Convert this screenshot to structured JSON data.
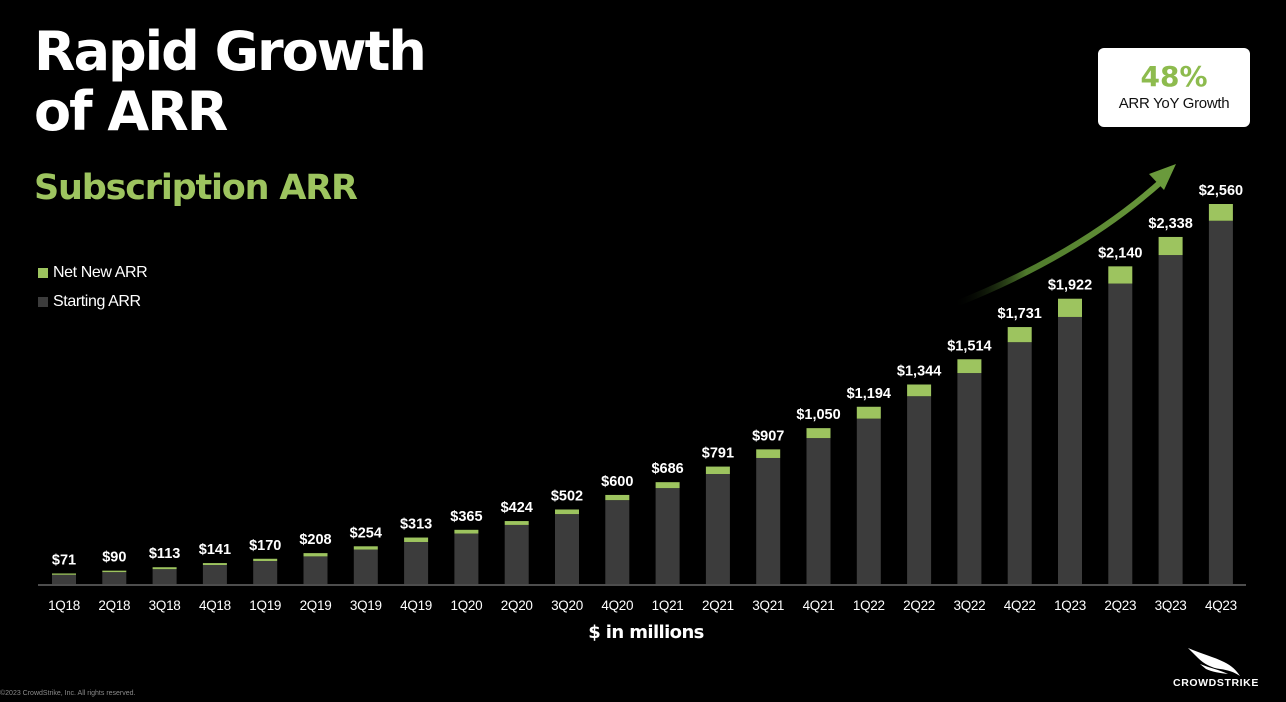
{
  "title_lines": [
    "Rapid Growth",
    "of ARR"
  ],
  "subtitle": "Subscription ARR",
  "legend": [
    {
      "label": "Net New ARR",
      "color": "#9dc45f"
    },
    {
      "label": "Starting ARR",
      "color": "#3c3c3c"
    }
  ],
  "callout": {
    "value": "48%",
    "label": "ARR YoY Growth"
  },
  "footer": "©2023 CrowdStrike, Inc. All rights reserved.",
  "logo_text": "CROWDSTRIKE",
  "colors": {
    "background": "#000000",
    "net_new": "#9dc45f",
    "starting": "#3c3c3c",
    "arrow": "#6a9a3c"
  },
  "chart_data": {
    "type": "bar",
    "stacked": true,
    "categories": [
      "1Q18",
      "2Q18",
      "3Q18",
      "4Q18",
      "1Q19",
      "2Q19",
      "3Q19",
      "4Q19",
      "1Q20",
      "2Q20",
      "3Q20",
      "4Q20",
      "1Q21",
      "2Q21",
      "3Q21",
      "4Q21",
      "1Q22",
      "2Q22",
      "3Q22",
      "4Q22",
      "1Q23",
      "2Q23",
      "3Q23",
      "4Q23"
    ],
    "series": [
      {
        "name": "Starting ARR",
        "values": [
          62,
          80,
          100,
          128,
          155,
          186,
          232,
          283,
          340,
          398,
          471,
          565,
          646,
          741,
          849,
          983,
          1114,
          1265,
          1421,
          1629,
          1799,
          2024,
          2216,
          2447
        ]
      },
      {
        "name": "Net New ARR",
        "values": [
          9,
          10,
          13,
          13,
          15,
          22,
          22,
          30,
          25,
          26,
          31,
          35,
          40,
          50,
          58,
          67,
          80,
          79,
          93,
          102,
          123,
          116,
          122,
          113
        ]
      }
    ],
    "totals": [
      71,
      90,
      113,
      141,
      170,
      208,
      254,
      313,
      365,
      424,
      502,
      600,
      686,
      791,
      907,
      1050,
      1194,
      1344,
      1514,
      1731,
      1922,
      2140,
      2338,
      2560
    ],
    "total_labels": [
      "$71",
      "$90",
      "$113",
      "$141",
      "$170",
      "$208",
      "$254",
      "$313",
      "$365",
      "$424",
      "$502",
      "$600",
      "$686",
      "$791",
      "$907",
      "$1,050",
      "$1,194",
      "$1,344",
      "$1,514",
      "$1,731",
      "$1,922",
      "$2,140",
      "$2,338",
      "$2,560"
    ],
    "xlabel": "$ in millions",
    "ylim": [
      0,
      2560
    ],
    "grid": false
  }
}
